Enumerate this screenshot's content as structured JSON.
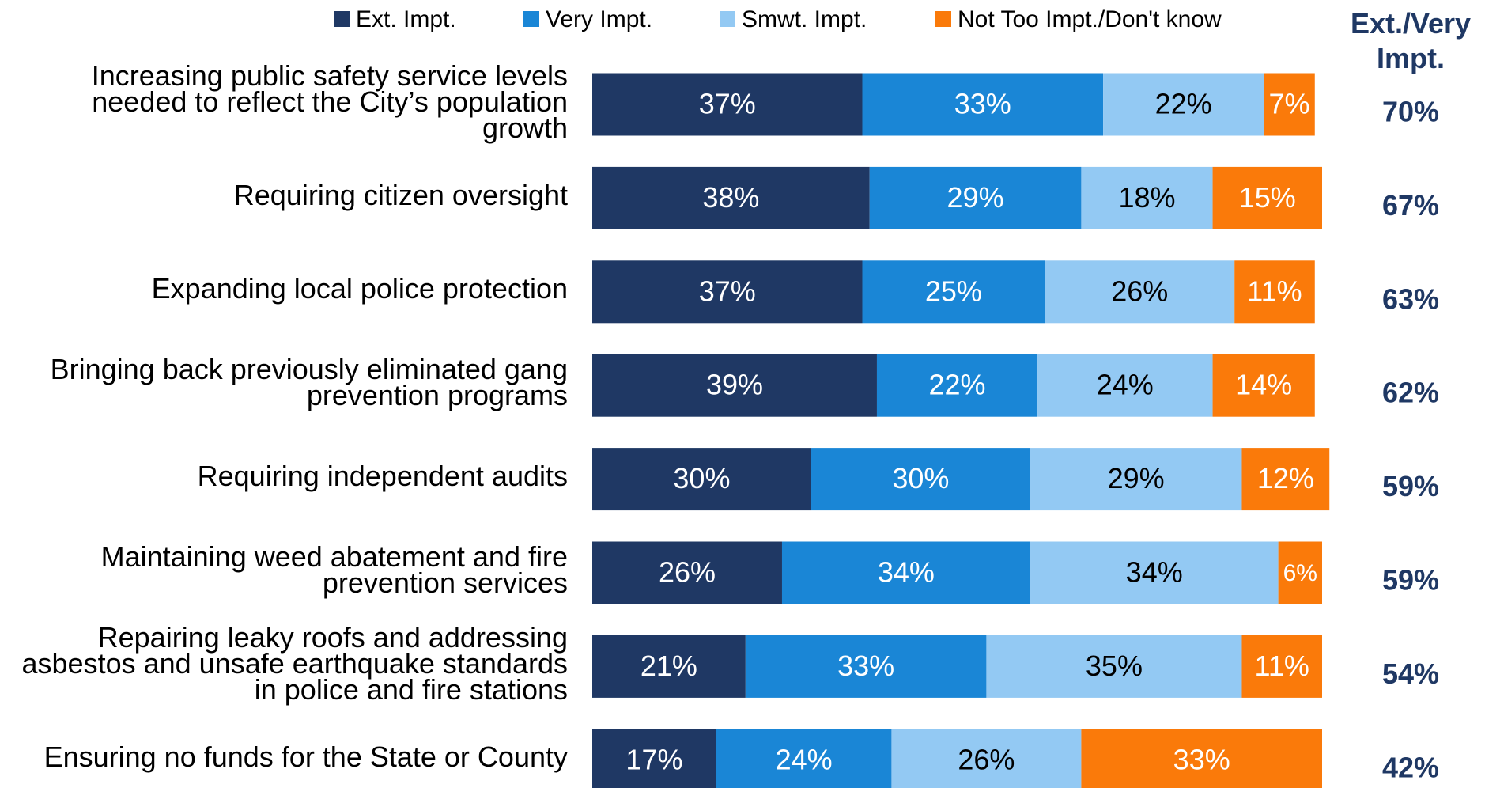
{
  "chart_data": {
    "type": "stacked_barh",
    "categories": [
      "Increasing public safety service levels needed to reflect the City’s population growth",
      "Requiring citizen oversight",
      "Expanding local police protection",
      "Bringing back previously eliminated gang prevention programs",
      "Requiring independent audits",
      "Maintaining weed abatement and fire prevention services",
      "Repairing leaky roofs and addressing asbestos and unsafe earthquake standards in police and fire stations",
      "Ensuring no funds for the State or County"
    ],
    "series": [
      {
        "name": "Ext. Impt.",
        "color": "#1f3864",
        "label_color": "#ffffff",
        "values": [
          37,
          38,
          37,
          39,
          30,
          26,
          21,
          17
        ],
        "value_labels": [
          "37%",
          "38%",
          "37%",
          "39%",
          "30%",
          "26%",
          "21%",
          "17%"
        ]
      },
      {
        "name": "Very Impt.",
        "color": "#1a86d6",
        "label_color": "#ffffff",
        "values": [
          33,
          29,
          25,
          22,
          30,
          34,
          33,
          24
        ],
        "value_labels": [
          "33%",
          "29%",
          "25%",
          "22%",
          "30%",
          "34%",
          "33%",
          "24%"
        ]
      },
      {
        "name": "Smwt. Impt.",
        "color": "#93c9f3",
        "label_color": "#000000",
        "values": [
          22,
          18,
          26,
          24,
          29,
          34,
          35,
          26
        ],
        "value_labels": [
          "22%",
          "18%",
          "26%",
          "24%",
          "29%",
          "34%",
          "35%",
          "26%"
        ]
      },
      {
        "name": "Not Too Impt./Don't know",
        "color": "#fa7a0a",
        "label_color": "#ffffff",
        "values": [
          7,
          15,
          11,
          14,
          12,
          6,
          11,
          33
        ],
        "value_labels": [
          "7%",
          "15%",
          "11%",
          "14%",
          "12%",
          "6%",
          "11%",
          "33%"
        ]
      }
    ],
    "totals": {
      "title": "Ext./Very Impt.",
      "color": "#1f3864",
      "values": [
        70,
        67,
        63,
        62,
        59,
        59,
        54,
        42
      ],
      "value_labels": [
        "70%",
        "67%",
        "63%",
        "62%",
        "59%",
        "59%",
        "54%",
        "42%"
      ]
    },
    "xlim": [
      0,
      100
    ],
    "legend": "top"
  }
}
